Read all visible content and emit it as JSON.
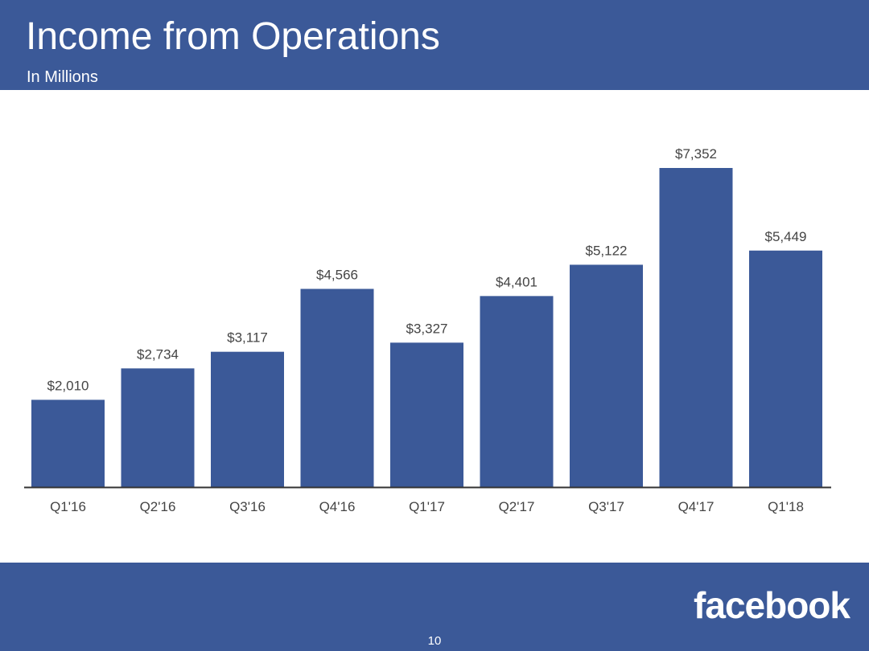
{
  "slide": {
    "title": "Income from Operations",
    "subtitle": "In Millions",
    "logo_text": "facebook",
    "page_number": "10"
  },
  "colors": {
    "brand": "#3b5998",
    "bar": "#3b5998",
    "label": "#444444",
    "axis": "#333333"
  },
  "chart_data": {
    "type": "bar",
    "title": "Income from Operations",
    "subtitle": "In Millions",
    "categories": [
      "Q1'16",
      "Q2'16",
      "Q3'16",
      "Q4'16",
      "Q1'17",
      "Q2'17",
      "Q3'17",
      "Q4'17",
      "Q1'18"
    ],
    "values": [
      2010,
      2734,
      3117,
      4566,
      3327,
      4401,
      5122,
      7352,
      5449
    ],
    "data_labels": [
      "$2,010",
      "$2,734",
      "$3,117",
      "$4,566",
      "$3,327",
      "$4,401",
      "$5,122",
      "$7,352",
      "$5,449"
    ],
    "xlabel": "",
    "ylabel": "",
    "ylim": [
      0,
      7352
    ],
    "grid": false,
    "legend": "none"
  }
}
